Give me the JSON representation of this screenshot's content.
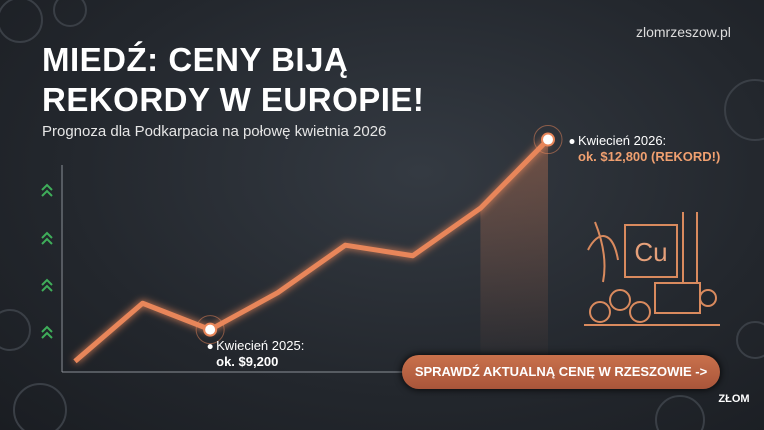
{
  "brand": "zlomrzeszow.pl",
  "button": "SPRAWDŹ AKTUALNĄ CENĘ W RZESZOWIE ->",
  "icon_label": "Cu",
  "corner_logo": "ZŁOM",
  "chart_data": {
    "type": "line",
    "title": "MIEDŹ: CENY BIJĄ REKORDY W EUROPIE!",
    "subtitle": "Prognoza dla Podkarpacia na połowę kwietnia 2026",
    "categories": [
      null,
      null,
      null,
      null,
      null,
      null,
      null,
      null
    ],
    "values": [
      8600,
      9700,
      9200,
      9900,
      10800,
      10600,
      11500,
      12800
    ],
    "point_labels": [
      null,
      null,
      "Kwiecień 2025:",
      null,
      null,
      null,
      null,
      "Kwiecień 2026:"
    ],
    "value_labels": [
      null,
      null,
      "ok. $9,200",
      null,
      null,
      null,
      null,
      "ok. $12,800 (REKORD!)"
    ],
    "color": "#e8865a",
    "ylim": [
      8000,
      13000
    ]
  }
}
